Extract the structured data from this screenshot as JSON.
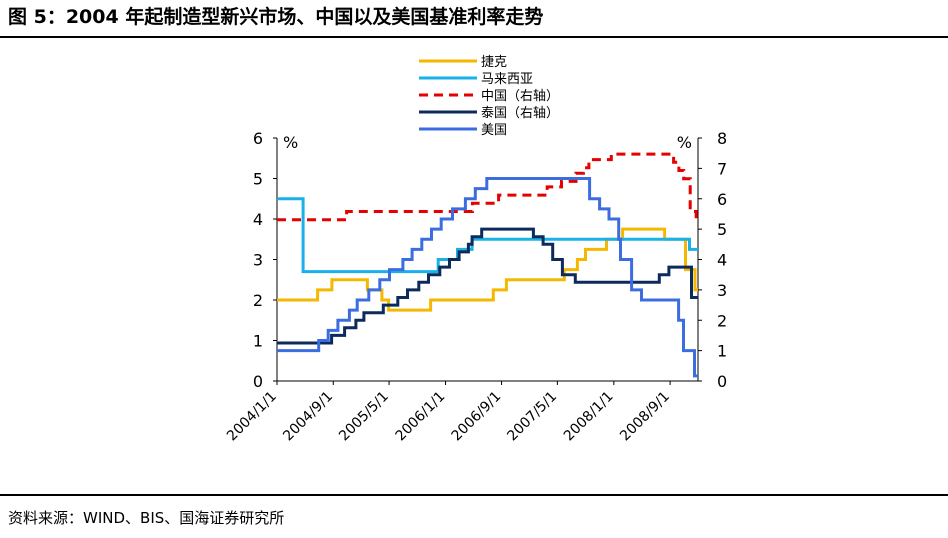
{
  "header": {
    "title": "图 5：2004 年起制造型新兴市场、中国以及美国基准利率走势"
  },
  "footer": {
    "source": "资料来源：WIND、BIS、国海证券研究所"
  },
  "chart_data": {
    "type": "line",
    "left_unit": "%",
    "right_unit": "%",
    "left_axis": {
      "min": 0,
      "max": 6,
      "ticks": [
        "0",
        "1",
        "2",
        "3",
        "4",
        "5",
        "6"
      ]
    },
    "right_axis": {
      "min": 0,
      "max": 8,
      "ticks": [
        "0",
        "1",
        "2",
        "3",
        "4",
        "5",
        "6",
        "7",
        "8"
      ]
    },
    "x_range": [
      "2004/1/1",
      "2008/12/31"
    ],
    "x_ticks": [
      "2004/1/1",
      "2004/9/1",
      "2005/5/1",
      "2006/1/1",
      "2006/9/1",
      "2007/5/1",
      "2008/1/1",
      "2008/9/1"
    ],
    "legend_position": "top-center",
    "series": [
      {
        "name": "捷克",
        "axis": "left",
        "color": "#f5b800",
        "dash": false,
        "step": true,
        "points": [
          [
            "2004/1/1",
            2.0
          ],
          [
            "2004/6/25",
            2.25
          ],
          [
            "2004/8/26",
            2.5
          ],
          [
            "2005/1/27",
            2.25
          ],
          [
            "2005/3/31",
            2.0
          ],
          [
            "2005/4/29",
            1.75
          ],
          [
            "2005/10/28",
            2.0
          ],
          [
            "2006/7/27",
            2.25
          ],
          [
            "2006/9/22",
            2.5
          ],
          [
            "2007/5/31",
            2.75
          ],
          [
            "2007/7/27",
            3.0
          ],
          [
            "2007/8/31",
            3.25
          ],
          [
            "2007/11/30",
            3.5
          ],
          [
            "2008/2/8",
            3.75
          ],
          [
            "2008/8/8",
            3.5
          ],
          [
            "2008/11/7",
            2.75
          ],
          [
            "2008/12/18",
            2.25
          ],
          [
            "2008/12/31",
            2.25
          ]
        ]
      },
      {
        "name": "马来西亚",
        "axis": "left",
        "color": "#1ab0e8",
        "dash": false,
        "step": true,
        "points": [
          [
            "2004/1/1",
            4.5
          ],
          [
            "2004/4/23",
            2.7
          ],
          [
            "2005/11/30",
            3.0
          ],
          [
            "2006/2/22",
            3.25
          ],
          [
            "2006/4/26",
            3.5
          ],
          [
            "2008/11/24",
            3.25
          ],
          [
            "2008/12/31",
            3.25
          ]
        ]
      },
      {
        "name": "中国（右轴）",
        "axis": "right",
        "color": "#e60000",
        "dash": true,
        "step": true,
        "points": [
          [
            "2004/1/1",
            5.31
          ],
          [
            "2004/10/29",
            5.58
          ],
          [
            "2006/4/28",
            5.85
          ],
          [
            "2006/8/19",
            6.12
          ],
          [
            "2007/3/18",
            6.39
          ],
          [
            "2007/5/19",
            6.57
          ],
          [
            "2007/7/21",
            6.84
          ],
          [
            "2007/8/22",
            7.02
          ],
          [
            "2007/9/15",
            7.29
          ],
          [
            "2007/12/21",
            7.47
          ],
          [
            "2008/9/16",
            7.2
          ],
          [
            "2008/10/9",
            6.93
          ],
          [
            "2008/10/30",
            6.66
          ],
          [
            "2008/11/27",
            5.58
          ],
          [
            "2008/12/23",
            5.31
          ],
          [
            "2008/12/31",
            5.31
          ]
        ]
      },
      {
        "name": "泰国（右轴）",
        "axis": "right",
        "color": "#0d2a5c",
        "dash": false,
        "step": true,
        "points": [
          [
            "2004/1/1",
            1.25
          ],
          [
            "2004/8/25",
            1.5
          ],
          [
            "2004/10/20",
            1.75
          ],
          [
            "2004/12/8",
            2.0
          ],
          [
            "2005/1/12",
            2.25
          ],
          [
            "2005/4/6",
            2.5
          ],
          [
            "2005/6/8",
            2.75
          ],
          [
            "2005/7/20",
            3.0
          ],
          [
            "2005/9/7",
            3.25
          ],
          [
            "2005/10/19",
            3.5
          ],
          [
            "2005/12/7",
            3.75
          ],
          [
            "2006/1/18",
            4.0
          ],
          [
            "2006/3/1",
            4.25
          ],
          [
            "2006/4/10",
            4.5
          ],
          [
            "2006/4/26",
            4.75
          ],
          [
            "2006/6/7",
            5.0
          ],
          [
            "2007/1/17",
            4.75
          ],
          [
            "2007/2/28",
            4.5
          ],
          [
            "2007/4/11",
            4.0
          ],
          [
            "2007/5/23",
            3.5
          ],
          [
            "2007/7/18",
            3.25
          ],
          [
            "2008/7/16",
            3.5
          ],
          [
            "2008/8/27",
            3.75
          ],
          [
            "2008/12/3",
            2.75
          ],
          [
            "2008/12/31",
            2.75
          ]
        ]
      },
      {
        "name": "美国",
        "axis": "left",
        "color": "#3b6de0",
        "dash": false,
        "step": true,
        "points": [
          [
            "2004/1/1",
            0.75
          ],
          [
            "2004/6/30",
            1.0
          ],
          [
            "2004/8/10",
            1.25
          ],
          [
            "2004/9/21",
            1.5
          ],
          [
            "2004/11/10",
            1.75
          ],
          [
            "2004/12/14",
            2.0
          ],
          [
            "2005/2/2",
            2.25
          ],
          [
            "2005/3/22",
            2.5
          ],
          [
            "2005/5/3",
            2.75
          ],
          [
            "2005/6/30",
            3.0
          ],
          [
            "2005/8/9",
            3.25
          ],
          [
            "2005/9/20",
            3.5
          ],
          [
            "2005/11/1",
            3.75
          ],
          [
            "2005/12/13",
            4.0
          ],
          [
            "2006/1/31",
            4.25
          ],
          [
            "2006/3/28",
            4.5
          ],
          [
            "2006/5/10",
            4.75
          ],
          [
            "2006/6/29",
            5.0
          ],
          [
            "2007/9/18",
            4.5
          ],
          [
            "2007/10/31",
            4.25
          ],
          [
            "2007/12/11",
            4.0
          ],
          [
            "2008/1/22",
            3.5
          ],
          [
            "2008/1/30",
            3.0
          ],
          [
            "2008/3/18",
            2.25
          ],
          [
            "2008/4/30",
            2.0
          ],
          [
            "2008/10/8",
            1.5
          ],
          [
            "2008/10/29",
            0.75
          ],
          [
            "2008/12/16",
            0.125
          ],
          [
            "2008/12/31",
            0.125
          ]
        ]
      }
    ]
  }
}
